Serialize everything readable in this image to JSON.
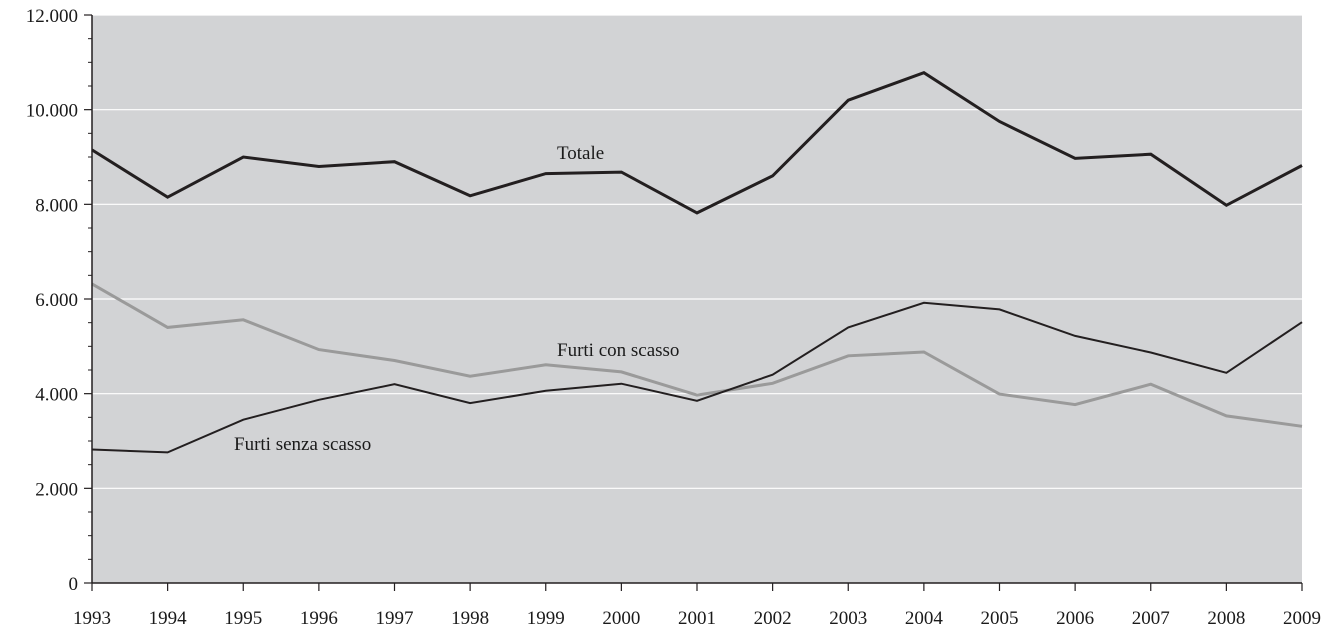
{
  "chart_data": {
    "type": "line",
    "x": [
      "1993",
      "1994",
      "1995",
      "1996",
      "1997",
      "1998",
      "1999",
      "2000",
      "2001",
      "2002",
      "2003",
      "2004",
      "2005",
      "2006",
      "2007",
      "2008",
      "2009"
    ],
    "ylim": [
      0,
      12000
    ],
    "yticks": [
      0,
      2000,
      4000,
      6000,
      8000,
      10000,
      12000
    ],
    "ytick_labels": [
      "0",
      "2.000",
      "4.000",
      "6.000",
      "8.000",
      "10.000",
      "12.000"
    ],
    "grid": true,
    "series": [
      {
        "name": "Totale",
        "color": "#231f20",
        "values": [
          9150,
          8150,
          9000,
          8800,
          8900,
          8180,
          8650,
          8680,
          7820,
          8600,
          10200,
          10780,
          9750,
          8970,
          9060,
          7980,
          8820
        ]
      },
      {
        "name": "Furti con scasso",
        "color": "#9a9a9a",
        "values": [
          6320,
          5400,
          5560,
          4930,
          4700,
          4370,
          4610,
          4460,
          3970,
          4220,
          4800,
          4880,
          3990,
          3770,
          4200,
          3530,
          3310
        ]
      },
      {
        "name": "Furti senza scasso",
        "color": "#231f20",
        "values": [
          2820,
          2760,
          3450,
          3870,
          4200,
          3800,
          4060,
          4210,
          3850,
          4400,
          5400,
          5920,
          5780,
          5220,
          4870,
          4440,
          5510
        ]
      }
    ]
  }
}
